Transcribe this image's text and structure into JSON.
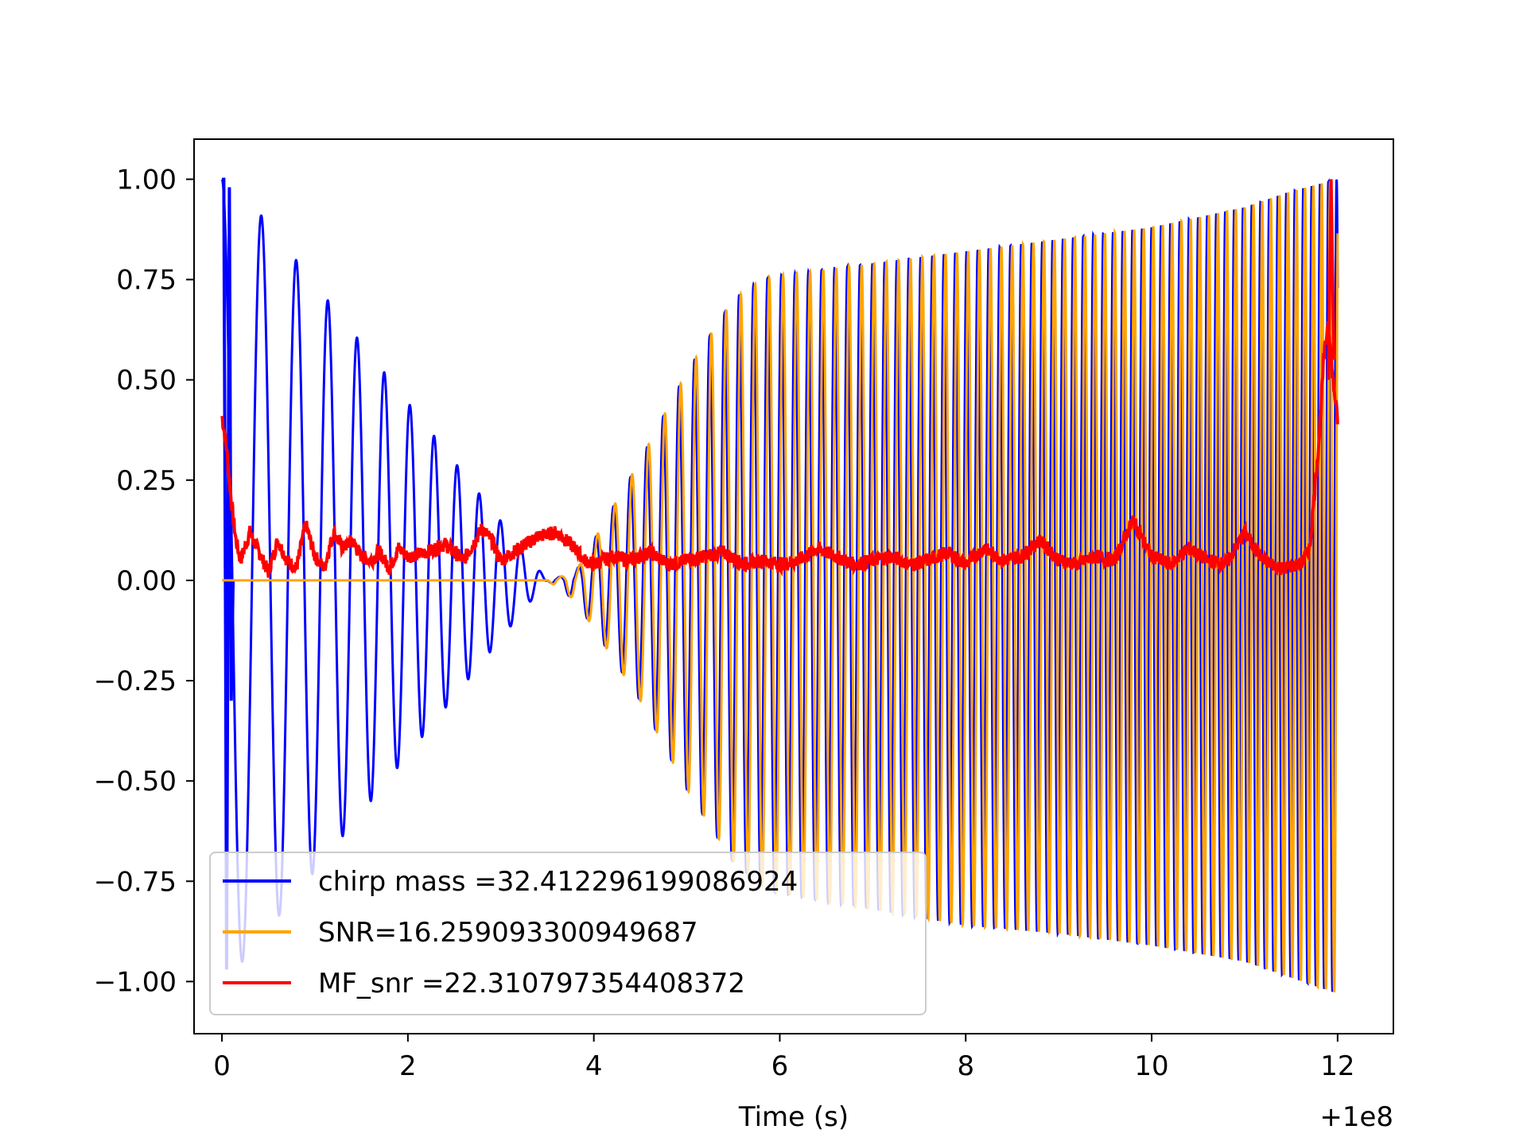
{
  "chart_data": {
    "type": "line",
    "title": "",
    "xlabel": "Time (s)",
    "ylabel": "",
    "x_offset_label": "+1e8",
    "xlim": [
      -0.3,
      12.6
    ],
    "ylim": [
      -1.13,
      1.1
    ],
    "xticks": [
      0,
      2,
      4,
      6,
      8,
      10,
      12
    ],
    "xtick_labels": [
      "0",
      "2",
      "4",
      "6",
      "8",
      "10",
      "12"
    ],
    "yticks": [
      1.0,
      0.75,
      0.5,
      0.25,
      0.0,
      -0.25,
      -0.5,
      -0.75,
      -1.0
    ],
    "ytick_labels": [
      "1.00",
      "0.75",
      "0.50",
      "0.25",
      "0.00",
      "−0.25",
      "−0.50",
      "−0.75",
      "−1.00"
    ],
    "grid": false,
    "legend_position": "lower-left",
    "series": [
      {
        "name": "chirp mass =32.412296199086924",
        "color": "#0000ff",
        "role": "matched-filter template (chirp waveform)",
        "envelope_x": [
          0.0,
          0.15,
          3.5,
          3.8,
          4.0,
          4.5,
          5.0,
          5.5,
          5.8,
          6.0,
          7.0,
          8.0,
          9.0,
          10.0,
          11.0,
          11.5,
          12.0
        ],
        "envelope_upper": [
          1.0,
          0.99,
          0.0,
          0.02,
          0.1,
          0.3,
          0.52,
          0.7,
          0.75,
          0.76,
          0.79,
          0.82,
          0.85,
          0.88,
          0.93,
          0.97,
          1.0
        ],
        "envelope_lower": [
          -0.97,
          -0.97,
          0.0,
          -0.05,
          -0.12,
          -0.3,
          -0.52,
          -0.7,
          -0.76,
          -0.78,
          -0.82,
          -0.86,
          -0.88,
          -0.91,
          -0.95,
          -0.99,
          -1.03
        ]
      },
      {
        "name": "SNR=16.259093300949687",
        "color": "#ffa500",
        "role": "signal waveform",
        "envelope_x": [
          0.0,
          3.5,
          3.8,
          4.0,
          4.5,
          5.0,
          5.5,
          5.8,
          6.0,
          7.0,
          8.0,
          9.0,
          10.0,
          11.0,
          11.5,
          12.0
        ],
        "envelope_upper": [
          0.0,
          0.0,
          0.02,
          0.1,
          0.3,
          0.52,
          0.7,
          0.75,
          0.76,
          0.79,
          0.82,
          0.85,
          0.88,
          0.93,
          0.97,
          1.0
        ],
        "envelope_lower": [
          0.0,
          0.0,
          -0.05,
          -0.12,
          -0.3,
          -0.52,
          -0.7,
          -0.76,
          -0.78,
          -0.82,
          -0.86,
          -0.88,
          -0.91,
          -0.95,
          -0.99,
          -1.03
        ]
      },
      {
        "name": "MF_snr =22.310797354408372",
        "color": "#ff0000",
        "role": "matched-filter output",
        "x": [
          0.0,
          0.05,
          0.1,
          0.15,
          0.2,
          0.3,
          0.4,
          0.5,
          0.6,
          0.7,
          0.8,
          0.9,
          1.0,
          1.1,
          1.2,
          1.3,
          1.4,
          1.5,
          1.6,
          1.7,
          1.8,
          1.9,
          2.0,
          2.2,
          2.4,
          2.6,
          2.8,
          2.9,
          3.0,
          3.2,
          3.4,
          3.6,
          3.7,
          3.8,
          3.9,
          4.0,
          4.2,
          4.4,
          4.6,
          4.8,
          5.0,
          5.2,
          5.4,
          5.6,
          5.8,
          6.0,
          6.2,
          6.4,
          6.6,
          6.8,
          7.0,
          7.2,
          7.4,
          7.6,
          7.8,
          8.0,
          8.2,
          8.4,
          8.6,
          8.8,
          9.0,
          9.2,
          9.4,
          9.6,
          9.8,
          10.0,
          10.2,
          10.4,
          10.6,
          10.8,
          11.0,
          11.2,
          11.4,
          11.6,
          11.7,
          11.8,
          11.85,
          11.9,
          11.95,
          12.0
        ],
        "y": [
          0.41,
          0.33,
          0.2,
          0.1,
          0.05,
          0.12,
          0.07,
          0.02,
          0.1,
          0.05,
          0.03,
          0.14,
          0.06,
          0.03,
          0.12,
          0.08,
          0.1,
          0.06,
          0.05,
          0.07,
          0.03,
          0.08,
          0.06,
          0.07,
          0.09,
          0.05,
          0.13,
          0.1,
          0.05,
          0.08,
          0.11,
          0.12,
          0.1,
          0.08,
          0.05,
          0.04,
          0.06,
          0.05,
          0.07,
          0.04,
          0.05,
          0.06,
          0.07,
          0.04,
          0.05,
          0.04,
          0.05,
          0.08,
          0.06,
          0.04,
          0.05,
          0.06,
          0.04,
          0.05,
          0.07,
          0.04,
          0.08,
          0.05,
          0.06,
          0.1,
          0.05,
          0.04,
          0.06,
          0.05,
          0.15,
          0.06,
          0.04,
          0.08,
          0.05,
          0.04,
          0.12,
          0.05,
          0.03,
          0.04,
          0.08,
          0.35,
          0.55,
          0.65,
          0.5,
          0.4
        ]
      }
    ]
  }
}
